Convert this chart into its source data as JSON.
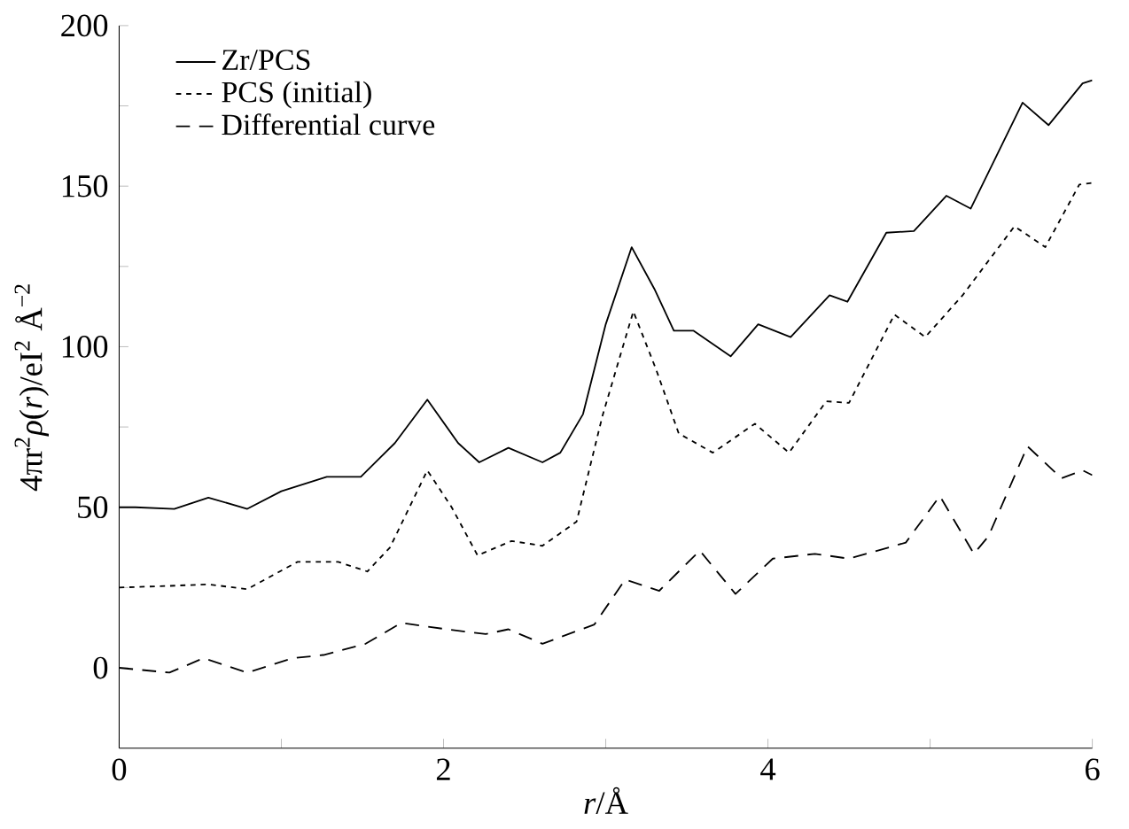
{
  "chart_data": {
    "type": "line",
    "xlabel": "*r*/Å",
    "ylabel": "4πr$^{2}$*ρ*(*r*)/eI$^{2}$ Å$^{−2}$",
    "xlim": [
      0,
      6
    ],
    "ylim": [
      -25,
      200
    ],
    "xticks": [
      0,
      {
        "value": 1,
        "label": null
      },
      2,
      {
        "value": 3,
        "label": null
      },
      4,
      {
        "value": 5,
        "label": null
      },
      6
    ],
    "yticks": [
      0,
      {
        "value": 25,
        "label": null
      },
      50,
      {
        "value": 75,
        "label": null
      },
      100,
      {
        "value": 125,
        "label": null
      },
      150,
      {
        "value": 175,
        "label": null
      },
      200
    ],
    "grid": false,
    "legend": "top left",
    "marker": "none",
    "series": [
      {
        "name": "Zr/PCS",
        "color": "#000000",
        "line_style": "solid",
        "x": [
          0,
          0.1,
          0.34,
          0.55,
          0.79,
          1.0,
          1.28,
          1.49,
          1.7,
          1.9,
          2.09,
          2.22,
          2.4,
          2.61,
          2.72,
          2.86,
          3.0,
          3.16,
          3.3,
          3.42,
          3.54,
          3.77,
          3.94,
          4.14,
          4.38,
          4.49,
          4.73,
          4.9,
          5.1,
          5.25,
          5.57,
          5.73,
          5.94,
          6.0
        ],
        "values": [
          50,
          50,
          49.5,
          53,
          49.5,
          55,
          59.5,
          59.5,
          70,
          83.5,
          70,
          64,
          68.5,
          64,
          67,
          79,
          107,
          131,
          118,
          105,
          105,
          97,
          107,
          103,
          116,
          114,
          135.5,
          136,
          147,
          143,
          176,
          169,
          182,
          183
        ]
      },
      {
        "name": "PCS (initial)",
        "color": "#000000",
        "line_style": "dotted",
        "x": [
          0,
          0.3,
          0.55,
          0.79,
          1.1,
          1.35,
          1.53,
          1.67,
          1.9,
          2.05,
          2.21,
          2.42,
          2.61,
          2.82,
          2.98,
          3.17,
          3.31,
          3.45,
          3.66,
          3.92,
          4.13,
          4.36,
          4.5,
          4.78,
          4.97,
          5.2,
          5.52,
          5.71,
          5.92,
          6.0
        ],
        "values": [
          25,
          25.5,
          26,
          24.5,
          33,
          33,
          30,
          37.5,
          61.5,
          50,
          35,
          39.5,
          38,
          45.5,
          78.5,
          111,
          93,
          73,
          67,
          76,
          67,
          83,
          82.5,
          110,
          103,
          116,
          137.5,
          131,
          150.5,
          151
        ]
      },
      {
        "name": "Differential curve",
        "color": "#000000",
        "line_style": "dashed",
        "x": [
          0,
          0.31,
          0.52,
          0.79,
          1.07,
          1.26,
          1.52,
          1.74,
          2.02,
          2.26,
          2.4,
          2.61,
          2.93,
          3.12,
          3.33,
          3.58,
          3.8,
          4.03,
          4.29,
          4.5,
          4.85,
          5.06,
          5.27,
          5.36,
          5.6,
          5.81,
          5.94,
          6.0
        ],
        "values": [
          0,
          -1.5,
          3,
          -1.5,
          3,
          4,
          7.5,
          14,
          12,
          10.5,
          12,
          7.5,
          13.5,
          27.5,
          24,
          36.5,
          23,
          34,
          35.5,
          34,
          39,
          53.5,
          35.5,
          41,
          69,
          59,
          61.5,
          60
        ]
      }
    ]
  }
}
